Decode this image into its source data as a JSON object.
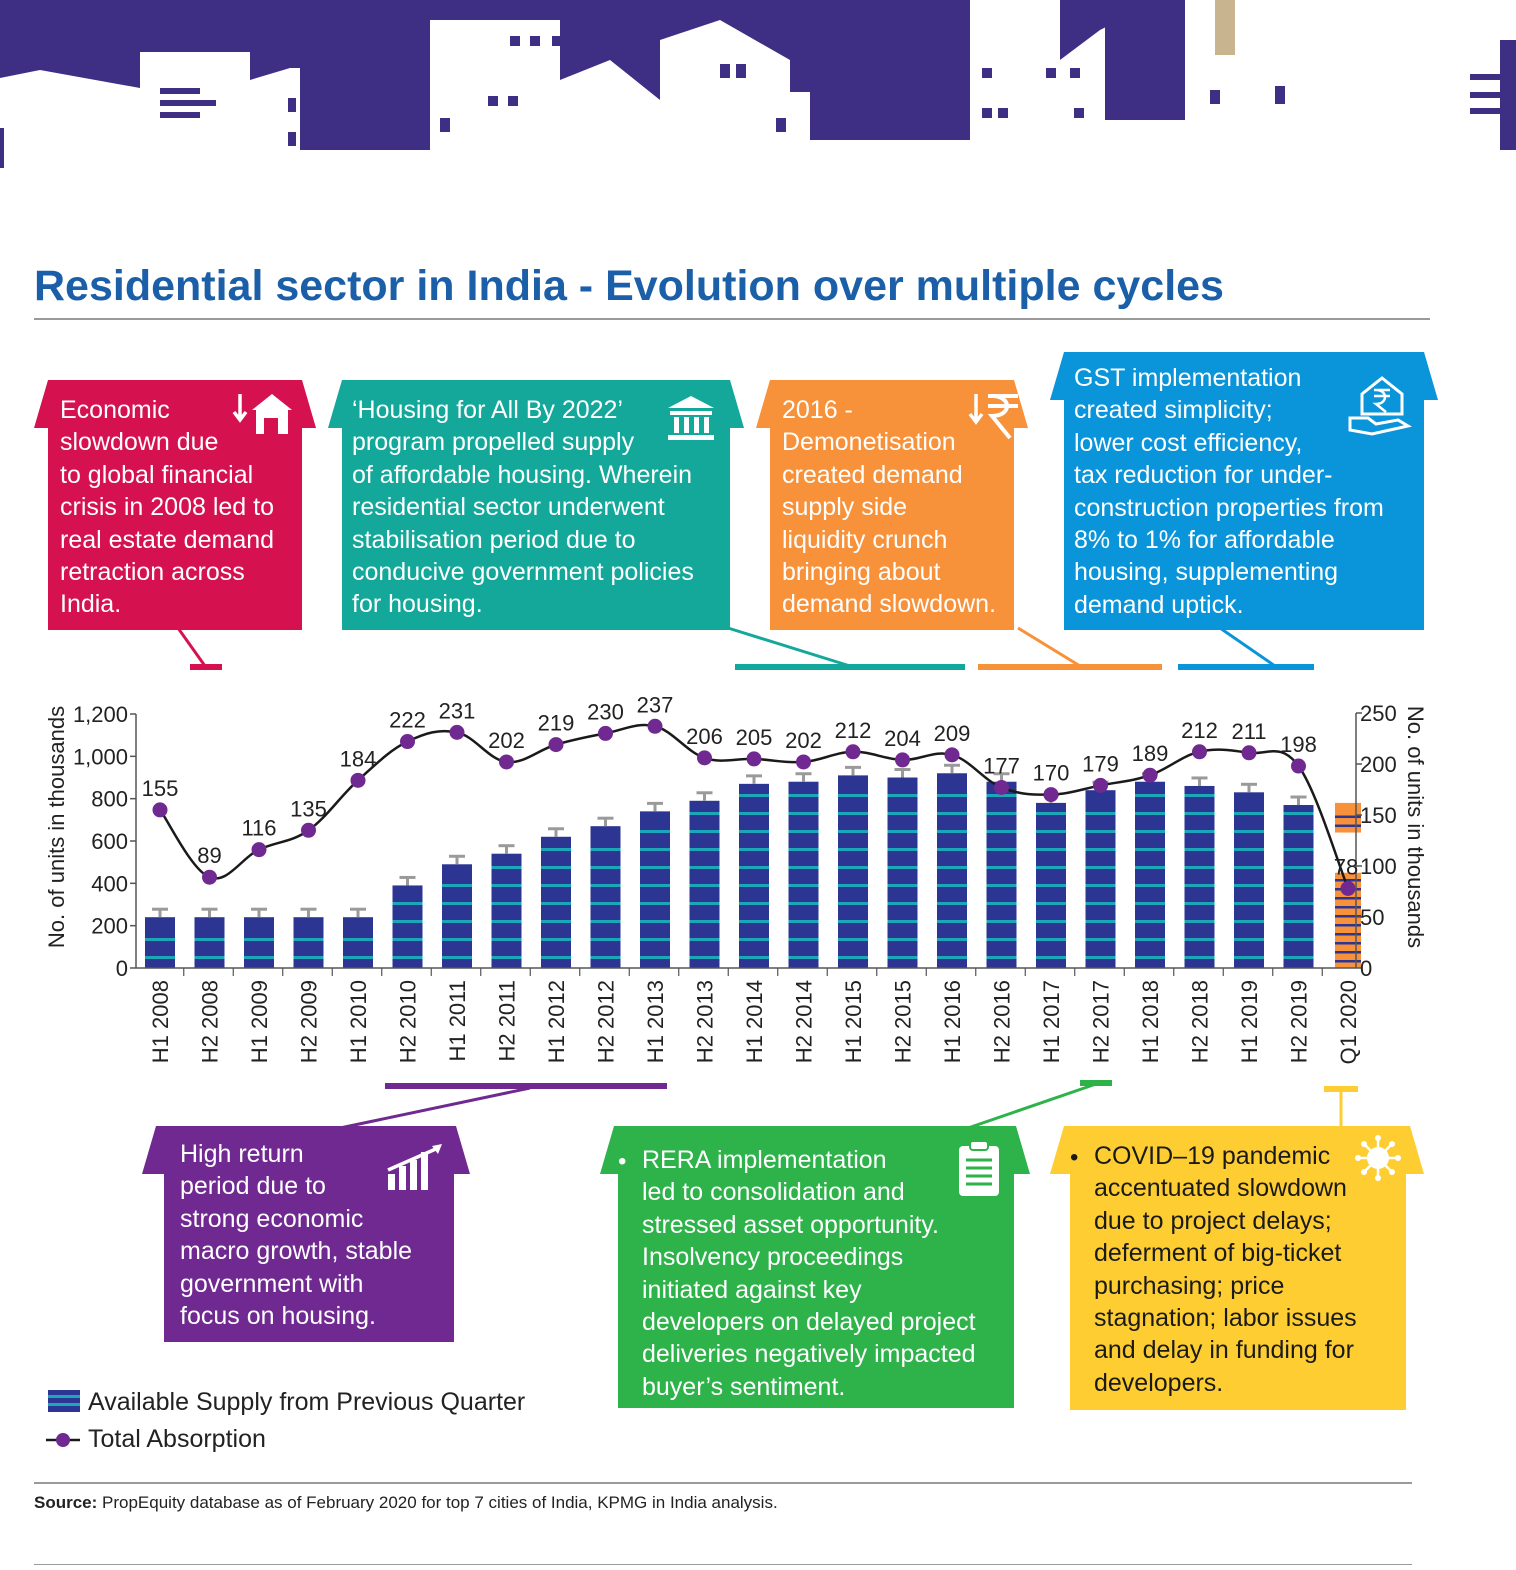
{
  "title": "Residential sector in India - Evolution over multiple cycles",
  "colors": {
    "skyline": "#3e2f85",
    "title": "#1b5fa8",
    "economic": "#d5124f",
    "housing": "#14a89a",
    "demonetisation": "#f7913a",
    "gst": "#0a94d9",
    "high_return": "#6f2990",
    "rera": "#2eb24a",
    "covid": "#fecd31",
    "bar": "#2d3592",
    "bar_stripe": "#1ba7b8",
    "q1_bar": "#f7913a",
    "line": "#1a1a1a",
    "point": "#6f2990"
  },
  "callouts": {
    "economic": {
      "text": [
        "Economic",
        "slowdown due",
        "to global financial",
        "crisis in 2008 led to",
        "real estate demand",
        "retraction across",
        "India."
      ],
      "icon": "house-down-icon"
    },
    "housing": {
      "text": [
        "‘Housing for All By 2022’",
        "program propelled supply",
        "of affordable housing. Wherein",
        "residential sector underwent",
        "stabilisation period due to",
        "conducive government policies",
        "for housing."
      ],
      "icon": "government-building-icon"
    },
    "demonetisation": {
      "text": [
        "2016 -",
        "Demonetisation",
        "created demand",
        "supply side",
        "liquidity crunch",
        "bringing about",
        "demand slowdown."
      ],
      "icon": "rupee-down-icon"
    },
    "gst": {
      "text": [
        "GST implementation",
        "created simplicity;",
        "lower cost efficiency,",
        "tax reduction for under-",
        "construction properties from",
        "8% to 1% for affordable",
        "housing, supplementing",
        "demand uptick."
      ],
      "icon": "rupee-house-hand-icon"
    },
    "high_return": {
      "text": [
        "High return",
        "period due to",
        "strong economic",
        "macro growth, stable",
        "government with",
        "focus on housing."
      ],
      "icon": "growth-chart-icon"
    },
    "rera": {
      "bullet": "•",
      "text": [
        "RERA implementation",
        "led to consolidation and",
        "stressed asset opportunity.",
        "Insolvency proceedings",
        "initiated against key",
        "developers on delayed project",
        "deliveries negatively impacted",
        "buyer’s sentiment."
      ],
      "icon": "clipboard-icon"
    },
    "covid": {
      "bullet": "•",
      "text": [
        "COVID–19 pandemic",
        "accentuated slowdown",
        "due to project delays;",
        "deferment of big-ticket",
        "purchasing; price",
        "stagnation; labor issues",
        "and delay in funding for",
        "developers."
      ],
      "icon": "virus-icon"
    }
  },
  "chart_data": {
    "type": "bar",
    "categories": [
      "H1 2008",
      "H2 2008",
      "H1 2009",
      "H2 2009",
      "H1 2010",
      "H2 2010",
      "H1 2011",
      "H2 2011",
      "H1 2012",
      "H2 2012",
      "H1 2013",
      "H2 2013",
      "H1 2014",
      "H2 2014",
      "H1 2015",
      "H2 2015",
      "H1 2016",
      "H2 2016",
      "H1 2017",
      "H2 2017",
      "H1 2018",
      "H2 2018",
      "H1 2019",
      "H2 2019",
      "Q1 2020"
    ],
    "series": [
      {
        "name": "Available Supply from Previous Quarter",
        "axis": "left",
        "values": [
          240,
          240,
          240,
          240,
          240,
          390,
          490,
          540,
          620,
          670,
          740,
          790,
          870,
          880,
          910,
          900,
          920,
          880,
          780,
          840,
          880,
          860,
          830,
          770,
          780
        ]
      },
      {
        "name": "Total Absorption",
        "axis": "right",
        "values": [
          155,
          89,
          116,
          135,
          184,
          222,
          231,
          202,
          219,
          230,
          237,
          206,
          205,
          202,
          212,
          204,
          209,
          177,
          170,
          179,
          189,
          212,
          211,
          198,
          78
        ]
      }
    ],
    "ylabel": "No. of units in thousands",
    "y2label": "No. of units in thousands",
    "ylim": [
      0,
      1200
    ],
    "y2lim": [
      0,
      250
    ],
    "yticks": [
      "0",
      "200",
      "400",
      "600",
      "800",
      "1,000",
      "1,200"
    ],
    "y2ticks": [
      "0",
      "50",
      "100",
      "150",
      "200",
      "250"
    ],
    "legend": [
      "Available Supply from Previous Quarter",
      "Total Absorption"
    ]
  },
  "source": {
    "label": "Source:",
    "text": " PropEquity database as of February 2020 for top 7 cities of India, KPMG in India analysis."
  }
}
